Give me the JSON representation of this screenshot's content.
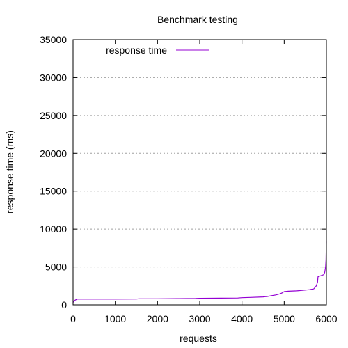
{
  "chart_data": {
    "type": "line",
    "title": "Benchmark testing",
    "xlabel": "requests",
    "ylabel": "response time (ms)",
    "xlim": [
      0,
      6000
    ],
    "ylim": [
      0,
      35000
    ],
    "xticks": [
      0,
      1000,
      2000,
      3000,
      4000,
      5000,
      6000
    ],
    "yticks": [
      0,
      5000,
      10000,
      15000,
      20000,
      25000,
      30000,
      35000
    ],
    "grid": "horizontal dotted",
    "legend_position": "top-left",
    "series": [
      {
        "name": "response time",
        "color": "#9400d3",
        "x": [
          0,
          20,
          60,
          100,
          500,
          1000,
          1500,
          1560,
          2000,
          2500,
          2900,
          3000,
          3500,
          3900,
          4000,
          4200,
          4500,
          4600,
          4700,
          4800,
          4900,
          4960,
          5000,
          5100,
          5300,
          5500,
          5600,
          5700,
          5760,
          5790,
          5800,
          5850,
          5900,
          5940,
          5960,
          5980,
          5990,
          5995,
          6000
        ],
        "y": [
          300,
          500,
          650,
          750,
          750,
          750,
          760,
          800,
          800,
          820,
          840,
          860,
          880,
          900,
          950,
          980,
          1050,
          1100,
          1200,
          1300,
          1450,
          1600,
          1750,
          1800,
          1850,
          1950,
          2000,
          2100,
          2500,
          3000,
          3700,
          3800,
          3900,
          4000,
          4300,
          5000,
          6000,
          7500,
          8400
        ]
      }
    ]
  }
}
